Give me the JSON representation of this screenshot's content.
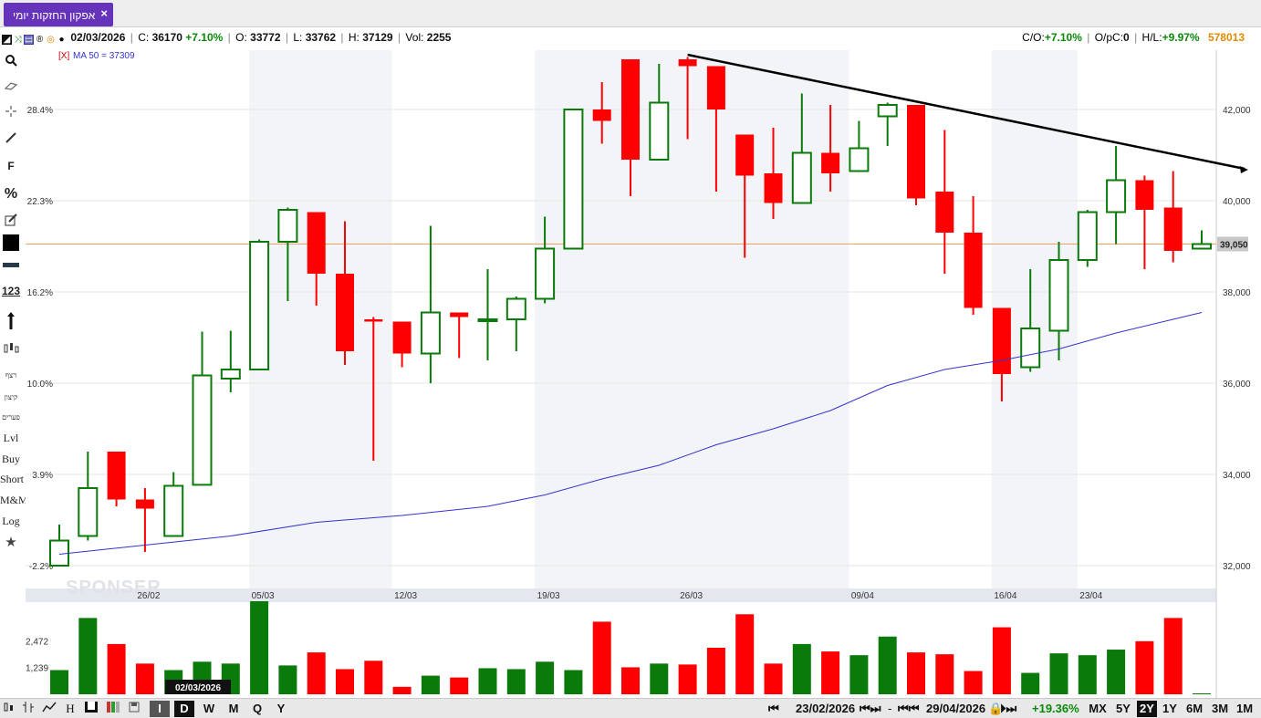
{
  "tab": {
    "title": "אפקון החזקות יומי",
    "close": "×"
  },
  "info": {
    "date": "02/03/2026",
    "close_label": "C:",
    "close_value": "36170",
    "change": "+7.10%",
    "open_label": "O:",
    "open_value": "33772",
    "low_label": "L:",
    "low_value": "33762",
    "high_label": "H:",
    "high_value": "37129",
    "vol_label": "Vol:",
    "vol_value": "2255",
    "co_label": "C/O:",
    "co_value": "+7.10%",
    "opc_label": "O/pC:",
    "opc_value": "0",
    "hl_label": "H/L:",
    "hl_value": "+9.97%",
    "ticker": "578013"
  },
  "tools": [
    "search-icon",
    "eraser-icon",
    "crosshair-icon",
    "line-icon",
    "F",
    "%",
    "pencil-icon",
    "color-swatch",
    "line-width",
    "123",
    "arrow-vertical-icon",
    "candles-icon",
    "רצף",
    "קיצון",
    "פערים",
    "Lvl",
    "Buy",
    "Short",
    "M&M",
    "Log",
    "star-icon"
  ],
  "tool_labels": {
    "f": "F",
    "pct": "%",
    "num": "123",
    "seq": "רצף",
    "ext": "קיצון",
    "gaps": "פערים",
    "lvl": "Lvl",
    "buy": "Buy",
    "short": "Short",
    "mm": "M&M",
    "log": "Log"
  },
  "ma_legend": {
    "close": "[X]",
    "text": "MA 50 = 37309"
  },
  "watermark": "SPONSER",
  "current_price_label": "39,050",
  "volume_axis": [
    "2,472",
    "1,239"
  ],
  "cursor_date": "02/03/2026",
  "colors": {
    "up": "#0a7a0a",
    "down": "#ff0000",
    "ma": "#3333cc",
    "trend": "#000000",
    "price_line": "#f0a060"
  },
  "chart_data": {
    "type": "candlestick",
    "y_axis_right": [
      "42,000",
      "40,000",
      "38,000",
      "36,000",
      "34,000",
      "32,000"
    ],
    "y_axis_right_values": [
      42000,
      40000,
      38000,
      36000,
      34000,
      32000
    ],
    "y_axis_left": [
      "28.4%",
      "22.3%",
      "16.2%",
      "10.0%",
      "3.9%",
      "-2.2%"
    ],
    "ylim": [
      31000,
      42800
    ],
    "x_labels": [
      {
        "label": "26/02",
        "index": 3
      },
      {
        "label": "05/03",
        "index": 7
      },
      {
        "label": "12/03",
        "index": 12
      },
      {
        "label": "19/03",
        "index": 17
      },
      {
        "label": "26/03",
        "index": 22
      },
      {
        "label": "09/04",
        "index": 28
      },
      {
        "label": "16/04",
        "index": 33
      },
      {
        "label": "23/04",
        "index": 36
      }
    ],
    "candles": [
      {
        "o": 32000,
        "c": 32550,
        "h": 32900,
        "l": 32000
      },
      {
        "o": 32650,
        "c": 33700,
        "h": 34500,
        "l": 32550
      },
      {
        "o": 34500,
        "c": 33450,
        "h": 34500,
        "l": 33300
      },
      {
        "o": 33450,
        "c": 33250,
        "h": 33700,
        "l": 32300
      },
      {
        "o": 32650,
        "c": 33750,
        "h": 34050,
        "l": 32650
      },
      {
        "o": 33772,
        "c": 36170,
        "h": 37129,
        "l": 33762
      },
      {
        "o": 36100,
        "c": 36300,
        "h": 37150,
        "l": 35800
      },
      {
        "o": 36300,
        "c": 39100,
        "h": 39150,
        "l": 36300
      },
      {
        "o": 39100,
        "c": 39800,
        "h": 39850,
        "l": 37800
      },
      {
        "o": 39750,
        "c": 38400,
        "h": 39750,
        "l": 37700
      },
      {
        "o": 38400,
        "c": 36700,
        "h": 39550,
        "l": 36400
      },
      {
        "o": 37400,
        "c": 37350,
        "h": 37450,
        "l": 34300
      },
      {
        "o": 37350,
        "c": 36650,
        "h": 37350,
        "l": 36350
      },
      {
        "o": 36650,
        "c": 37550,
        "h": 39450,
        "l": 36000
      },
      {
        "o": 37550,
        "c": 37450,
        "h": 37550,
        "l": 36550
      },
      {
        "o": 37400,
        "c": 37400,
        "h": 38500,
        "l": 36500
      },
      {
        "o": 37400,
        "c": 37850,
        "h": 37900,
        "l": 36700
      },
      {
        "o": 37850,
        "c": 38950,
        "h": 39650,
        "l": 37750
      },
      {
        "o": 38950,
        "c": 42000,
        "h": 42000,
        "l": 38950
      },
      {
        "o": 42000,
        "c": 41750,
        "h": 42600,
        "l": 41250
      },
      {
        "o": 43100,
        "c": 40900,
        "h": 43100,
        "l": 40100
      },
      {
        "o": 40900,
        "c": 42150,
        "h": 43000,
        "l": 40900
      },
      {
        "o": 43100,
        "c": 42950,
        "h": 43150,
        "l": 41350
      },
      {
        "o": 42950,
        "c": 42000,
        "h": 42950,
        "l": 40200
      },
      {
        "o": 41450,
        "c": 40550,
        "h": 41450,
        "l": 38750
      },
      {
        "o": 40600,
        "c": 39950,
        "h": 41600,
        "l": 39600
      },
      {
        "o": 39950,
        "c": 41050,
        "h": 42350,
        "l": 39950
      },
      {
        "o": 41050,
        "c": 40600,
        "h": 42100,
        "l": 40200
      },
      {
        "o": 40650,
        "c": 41150,
        "h": 41750,
        "l": 40650
      },
      {
        "o": 41850,
        "c": 42100,
        "h": 42150,
        "l": 41200
      },
      {
        "o": 42100,
        "c": 40050,
        "h": 42100,
        "l": 39900
      },
      {
        "o": 40200,
        "c": 39300,
        "h": 41550,
        "l": 38400
      },
      {
        "o": 39300,
        "c": 37650,
        "h": 40100,
        "l": 37500
      },
      {
        "o": 37650,
        "c": 36200,
        "h": 37650,
        "l": 35600
      },
      {
        "o": 36350,
        "c": 37200,
        "h": 38500,
        "l": 36250
      },
      {
        "o": 37150,
        "c": 38700,
        "h": 39100,
        "l": 36500
      },
      {
        "o": 38700,
        "c": 39750,
        "h": 39800,
        "l": 38550
      },
      {
        "o": 39750,
        "c": 40450,
        "h": 41200,
        "l": 39050
      },
      {
        "o": 40450,
        "c": 39800,
        "h": 40550,
        "l": 38500
      },
      {
        "o": 39850,
        "c": 38900,
        "h": 40650,
        "l": 38650
      },
      {
        "o": 38950,
        "c": 39050,
        "h": 39350,
        "l": 38950
      }
    ],
    "ma50": [
      [
        0,
        32250
      ],
      [
        3,
        32450
      ],
      [
        6,
        32650
      ],
      [
        9,
        32950
      ],
      [
        12,
        33100
      ],
      [
        15,
        33300
      ],
      [
        17,
        33550
      ],
      [
        19,
        33900
      ],
      [
        21,
        34200
      ],
      [
        23,
        34650
      ],
      [
        25,
        35000
      ],
      [
        27,
        35400
      ],
      [
        29,
        35950
      ],
      [
        31,
        36300
      ],
      [
        33,
        36500
      ],
      [
        35,
        36750
      ],
      [
        37,
        37100
      ],
      [
        39,
        37400
      ],
      [
        40,
        37550
      ]
    ],
    "trendline": {
      "from": [
        22,
        43200
      ],
      "to": [
        41.5,
        40700
      ]
    },
    "volume": [
      0.26,
      0.82,
      0.54,
      0.33,
      0.26,
      0.35,
      0.33,
      1.0,
      0.31,
      0.45,
      0.27,
      0.36,
      0.08,
      0.2,
      0.18,
      0.28,
      0.27,
      0.35,
      0.26,
      0.78,
      0.29,
      0.33,
      0.32,
      0.5,
      0.86,
      0.33,
      0.54,
      0.46,
      0.42,
      0.62,
      0.45,
      0.43,
      0.25,
      0.72,
      0.23,
      0.44,
      0.42,
      0.48,
      0.57,
      0.82,
      0.01
    ],
    "volume_ticks": [
      2472,
      1239
    ],
    "volume_max": 4300
  },
  "bottom": {
    "buttons_left": [
      "I",
      "D",
      "W",
      "M",
      "Q",
      "Y"
    ],
    "selected_left": "D",
    "range_start": "23/02/2026",
    "range_dash": "-",
    "range_end": "29/04/2026",
    "range_change": "+19.36%",
    "periods": [
      "MX",
      "5Y",
      "2Y",
      "1Y",
      "6M",
      "3M",
      "1M"
    ],
    "selected_period": "2Y"
  }
}
